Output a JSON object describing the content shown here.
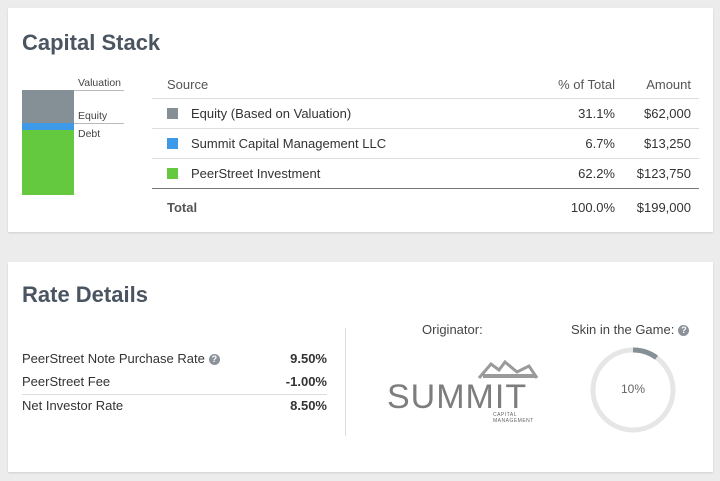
{
  "capital_stack": {
    "title": "Capital Stack",
    "stack_labels": {
      "valuation": "Valuation",
      "equity": "Equity",
      "debt": "Debt"
    },
    "columns": {
      "source": "Source",
      "pct": "% of Total",
      "amount": "Amount"
    },
    "rows": [
      {
        "source": "Equity (Based on Valuation)",
        "pct": "31.1%",
        "amount": "$62,000",
        "color": "#858f96"
      },
      {
        "source": "Summit Capital Management LLC",
        "pct": "6.7%",
        "amount": "$13,250",
        "color": "#3d9ae8"
      },
      {
        "source": "PeerStreet Investment",
        "pct": "62.2%",
        "amount": "$123,750",
        "color": "#65c93f"
      }
    ],
    "total": {
      "label": "Total",
      "pct": "100.0%",
      "amount": "$199,000"
    }
  },
  "rate_details": {
    "title": "Rate Details",
    "rates": [
      {
        "label": "PeerStreet Note Purchase Rate",
        "value": "9.50%",
        "help_icon": "question-circle-icon"
      },
      {
        "label": "PeerStreet Fee",
        "value": "-1.00%"
      },
      {
        "label": "Net Investor Rate",
        "value": "8.50%"
      }
    ],
    "originator_label": "Originator:",
    "originator_logo": {
      "name": "SUMMIT",
      "sub": "CAPITAL MANAGEMENT"
    },
    "skin_label": "Skin in the Game:",
    "skin_value": "10%",
    "skin_fraction": 0.1,
    "accent_gray": "#858f96"
  }
}
